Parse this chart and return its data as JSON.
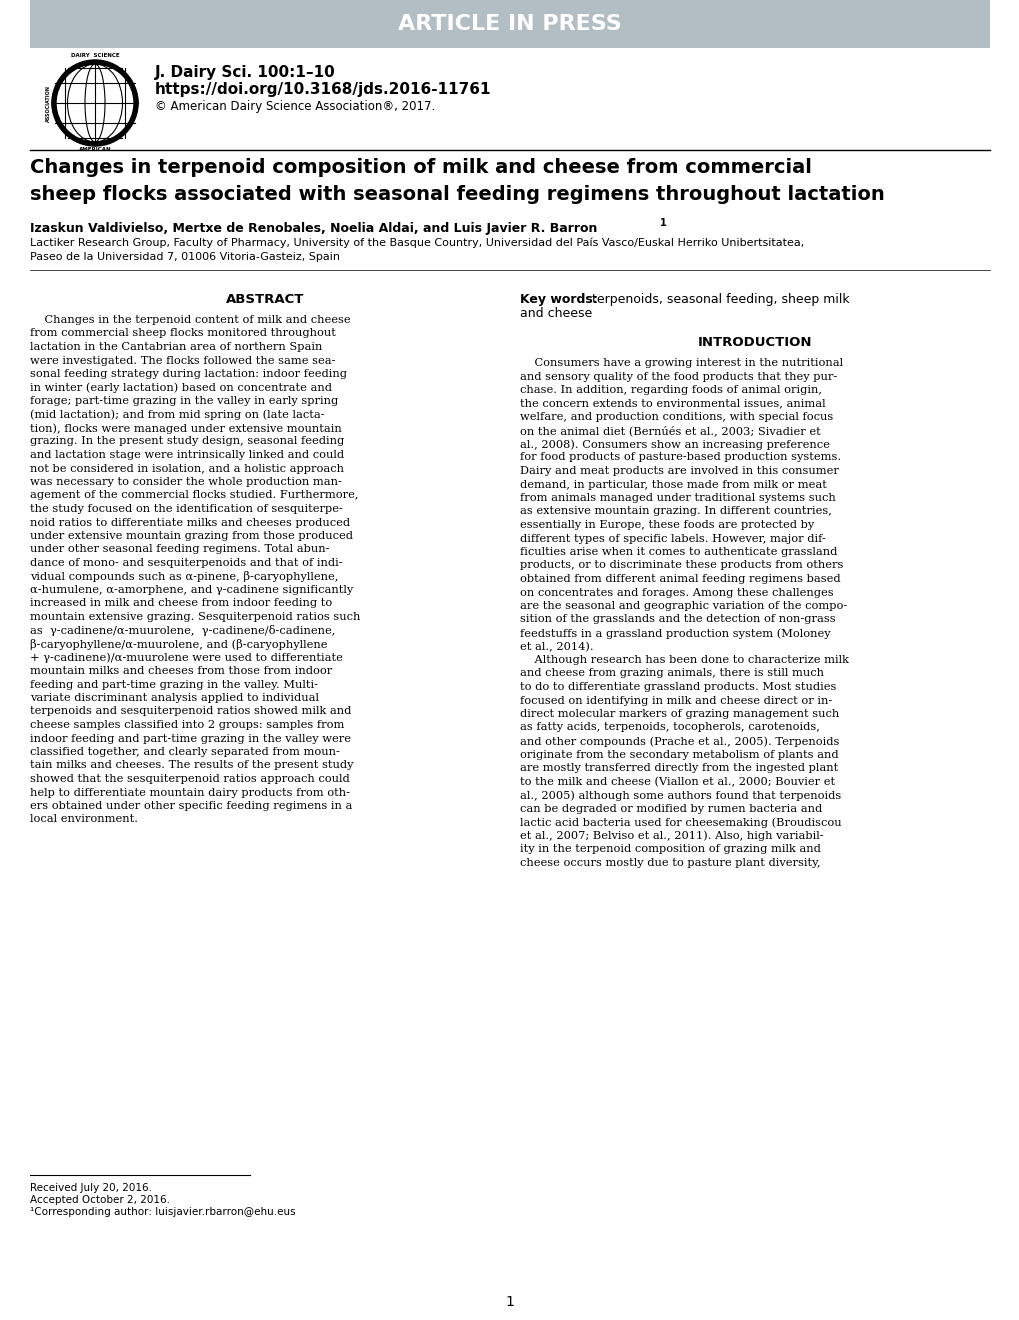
{
  "banner_text": "ARTICLE IN PRESS",
  "banner_bg": "#b2bec3",
  "banner_text_color": "#ffffff",
  "journal_line1": "J. Dairy Sci. 100:1–10",
  "journal_line2": "https://doi.org/10.3168/jds.2016-11761",
  "journal_line3": "© American Dairy Science Association®, 2017.",
  "title_line1": "Changes in terpenoid composition of milk and cheese from commercial",
  "title_line2": "sheep flocks associated with seasonal feeding regimens throughout lactation",
  "authors": "Izaskun Valdivielso, Mertxe de Renobales, Noelia Aldai, and Luis Javier R. Barron",
  "authors_sup": "1",
  "affiliation1": "Lactiker Research Group, Faculty of Pharmacy, University of the Basque Country, Universidad del País Vasco/Euskal Herriko Unibertsitatea,",
  "affiliation2": "Paseo de la Universidad 7, 01006 Vitoria-Gasteiz, Spain",
  "abstract_title": "ABSTRACT",
  "keywords_label": "Key words:",
  "keywords_rest": " terpenoids, seasonal feeding, sheep milk",
  "keywords_line2": "and cheese",
  "intro_title": "INTRODUCTION",
  "footnote1": "Received July 20, 2016.",
  "footnote2": "Accepted October 2, 2016.",
  "footnote3": "¹Corresponding author: luisjavier.rbarron@ehu.eus",
  "page_number": "1",
  "bg_color": "#ffffff",
  "text_color": "#000000",
  "abstract_lines": [
    "    Changes in the terpenoid content of milk and cheese",
    "from commercial sheep flocks monitored throughout",
    "lactation in the Cantabrian area of northern Spain",
    "were investigated. The flocks followed the same sea-",
    "sonal feeding strategy during lactation: indoor feeding",
    "in winter (early lactation) based on concentrate and",
    "forage; part-time grazing in the valley in early spring",
    "(mid lactation); and from mid spring on (late lacta-",
    "tion), flocks were managed under extensive mountain",
    "grazing. In the present study design, seasonal feeding",
    "and lactation stage were intrinsically linked and could",
    "not be considered in isolation, and a holistic approach",
    "was necessary to consider the whole production man-",
    "agement of the commercial flocks studied. Furthermore,",
    "the study focused on the identification of sesquiterpe-",
    "noid ratios to differentiate milks and cheeses produced",
    "under extensive mountain grazing from those produced",
    "under other seasonal feeding regimens. Total abun-",
    "dance of mono- and sesquiterpenoids and that of indi-",
    "vidual compounds such as α-pinene, β-caryophyllene,",
    "α-humulene, α-amorphene, and γ-cadinene significantly",
    "increased in milk and cheese from indoor feeding to",
    "mountain extensive grazing. Sesquiterpenoid ratios such",
    "as  γ-cadinene/α-muurolene,  γ-cadinene/δ-cadinene,",
    "β-caryophyllene/α-muurolene, and (β-caryophyllene",
    "+ γ-cadinene)/α-muurolene were used to differentiate",
    "mountain milks and cheeses from those from indoor",
    "feeding and part-time grazing in the valley. Multi-",
    "variate discriminant analysis applied to individual",
    "terpenoids and sesquiterpenoid ratios showed milk and",
    "cheese samples classified into 2 groups: samples from",
    "indoor feeding and part-time grazing in the valley were",
    "classified together, and clearly separated from moun-",
    "tain milks and cheeses. The results of the present study",
    "showed that the sesquiterpenoid ratios approach could",
    "help to differentiate mountain dairy products from oth-",
    "ers obtained under other specific feeding regimens in a",
    "local environment."
  ],
  "intro_lines": [
    "    Consumers have a growing interest in the nutritional",
    "and sensory quality of the food products that they pur-",
    "chase. In addition, regarding foods of animal origin,",
    "the concern extends to environmental issues, animal",
    "welfare, and production conditions, with special focus",
    "on the animal diet (Bernúés et al., 2003; Sivadier et",
    "al., 2008). Consumers show an increasing preference",
    "for food products of pasture-based production systems.",
    "Dairy and meat products are involved in this consumer",
    "demand, in particular, those made from milk or meat",
    "from animals managed under traditional systems such",
    "as extensive mountain grazing. In different countries,",
    "essentially in Europe, these foods are protected by",
    "different types of specific labels. However, major dif-",
    "ficulties arise when it comes to authenticate grassland",
    "products, or to discriminate these products from others",
    "obtained from different animal feeding regimens based",
    "on concentrates and forages. Among these challenges",
    "are the seasonal and geographic variation of the compo-",
    "sition of the grasslands and the detection of non-grass",
    "feedstuffs in a grassland production system (Moloney",
    "et al., 2014).",
    "    Although research has been done to characterize milk",
    "and cheese from grazing animals, there is still much",
    "to do to differentiate grassland products. Most studies",
    "focused on identifying in milk and cheese direct or in-",
    "direct molecular markers of grazing management such",
    "as fatty acids, terpenoids, tocopherols, carotenoids,",
    "and other compounds (Prache et al., 2005). Terpenoids",
    "originate from the secondary metabolism of plants and",
    "are mostly transferred directly from the ingested plant",
    "to the milk and cheese (Viallon et al., 2000; Bouvier et",
    "al., 2005) although some authors found that terpenoids",
    "can be degraded or modified by rumen bacteria and",
    "lactic acid bacteria used for cheesemaking (Broudiscou",
    "et al., 2007; Belviso et al., 2011). Also, high variabil-",
    "ity in the terpenoid composition of grazing milk and",
    "cheese occurs mostly due to pasture plant diversity,"
  ]
}
